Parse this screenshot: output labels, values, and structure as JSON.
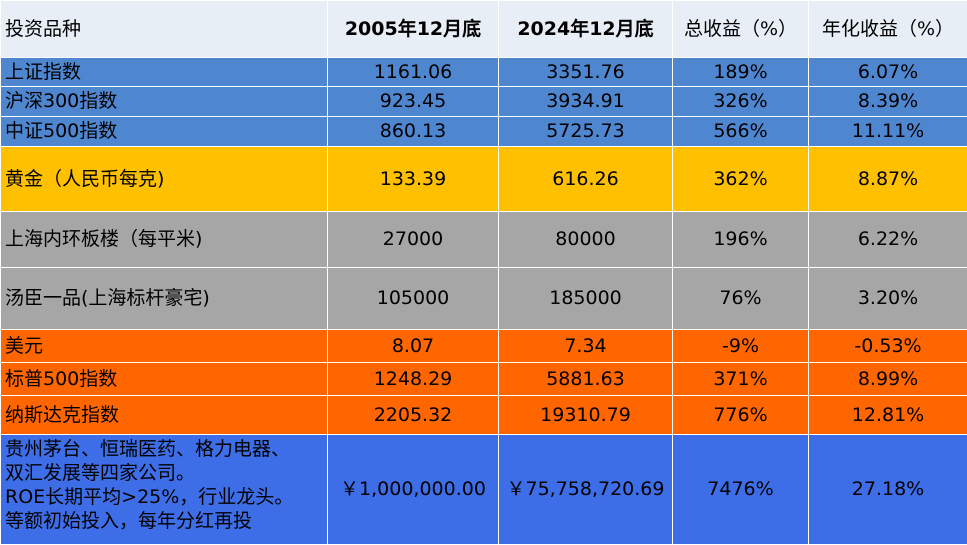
{
  "headers": [
    "投资品种",
    "2005年12月底",
    "2024年12月底",
    "总收益（%）",
    "年化收益（%）"
  ],
  "rows": [
    {
      "name": "上证指数",
      "v2005": "1161.06",
      "v2024": "3351.76",
      "total": "189%",
      "annual": "6.07%"
    },
    {
      "name": "沪深300指数",
      "v2005": "923.45",
      "v2024": "3934.91",
      "total": "326%",
      "annual": "8.39%"
    },
    {
      "name": "中证500指数",
      "v2005": "860.13",
      "v2024": "5725.73",
      "total": "566%",
      "annual": "11.11%"
    },
    {
      "name": "黄金（人民币每克)",
      "v2005": "133.39",
      "v2024": "616.26",
      "total": "362%",
      "annual": "8.87%"
    },
    {
      "name": "上海内环板楼（每平米)",
      "v2005": "27000",
      "v2024": "80000",
      "total": "196%",
      "annual": "6.22%"
    },
    {
      "name": "汤臣一品(上海标杆豪宅)",
      "v2005": "105000",
      "v2024": "185000",
      "total": "76%",
      "annual": "3.20%"
    },
    {
      "name": "美元",
      "v2005": "8.07",
      "v2024": "7.34",
      "total": "-9%",
      "annual": "-0.53%"
    },
    {
      "name": "标普500指数",
      "v2005": "1248.29",
      "v2024": "5881.63",
      "total": "371%",
      "annual": "8.99%"
    },
    {
      "name": "纳斯达克指数",
      "v2005": "2205.32",
      "v2024": "19310.79",
      "total": "776%",
      "annual": "12.81%"
    },
    {
      "name_lines": [
        "贵州茅台、恒瑞医药、格力电器、",
        "双汇发展等四家公司。",
        "ROE长期平均>25%，行业龙头。",
        "等额初始投入，每年分红再投"
      ],
      "v2005": "￥1,000,000.00",
      "v2024": "￥75,758,720.69",
      "total": "7476%",
      "annual": "27.18%"
    }
  ],
  "colors": {
    "header_bg": "#e8eef6",
    "index_rows": "#4f86d0",
    "gold_row": "#ffc000",
    "property_rows": "#a6a6a6",
    "foreign_rows": "#ff6600",
    "stock_portfolio_row": "#3d6ee8"
  }
}
